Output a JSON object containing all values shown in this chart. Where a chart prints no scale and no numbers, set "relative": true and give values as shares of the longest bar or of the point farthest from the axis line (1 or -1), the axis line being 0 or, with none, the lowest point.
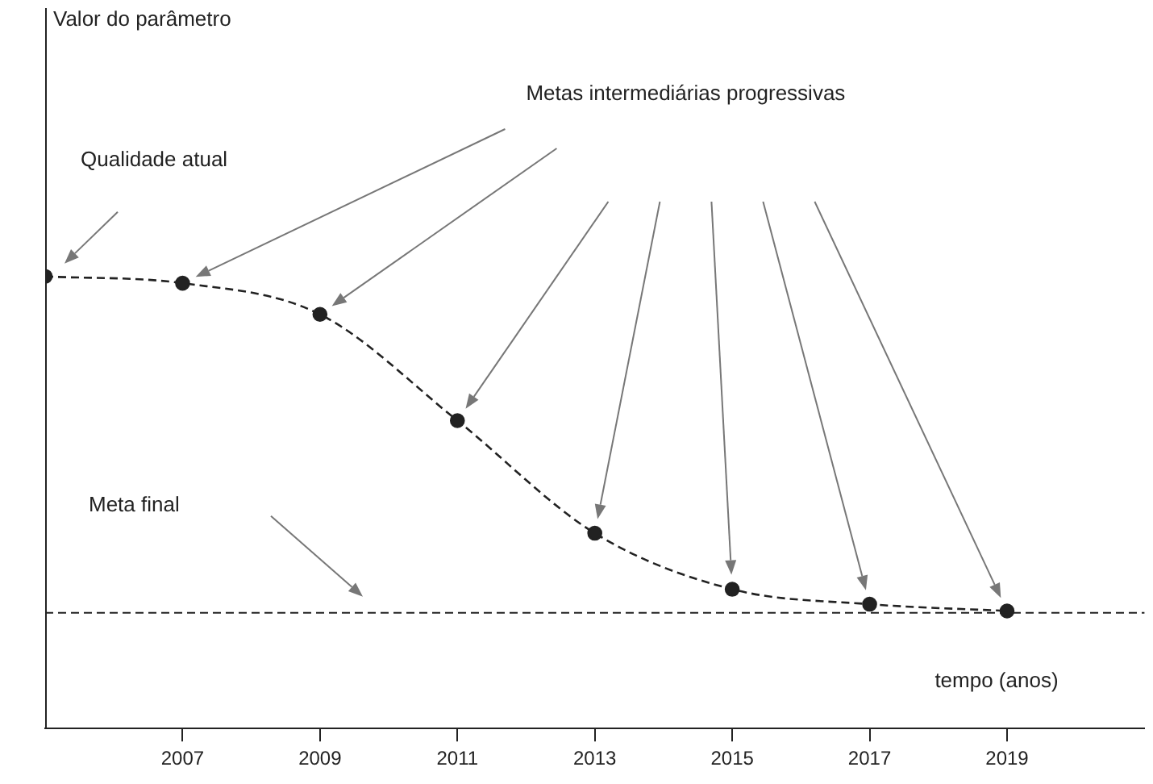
{
  "chart_data": {
    "type": "line",
    "relative": true,
    "xlabel": "tempo (anos)",
    "x": [
      2005,
      2007,
      2009,
      2011,
      2013,
      2015,
      2017,
      2019
    ],
    "xlim": [
      2005,
      2021
    ],
    "xticks": [
      2007,
      2009,
      2011,
      2013,
      2015,
      2017,
      2019
    ],
    "series": [
      {
        "color": "#222222",
        "values": [
          1,
          0.985,
          0.916,
          0.681,
          0.432,
          0.308,
          0.275,
          0.26
        ]
      }
    ],
    "marker": "circle",
    "line_style": "dashed",
    "grid": false,
    "legend": false,
    "ref_lines": [
      {
        "axis": "y",
        "value": 0.256,
        "label": "Meta final",
        "color": "#222222",
        "line_style": "dashed"
      }
    ],
    "annotations": [
      "Valor do parâmetro",
      "Qualidade atual",
      "Metas intermediárias progressivas"
    ]
  }
}
